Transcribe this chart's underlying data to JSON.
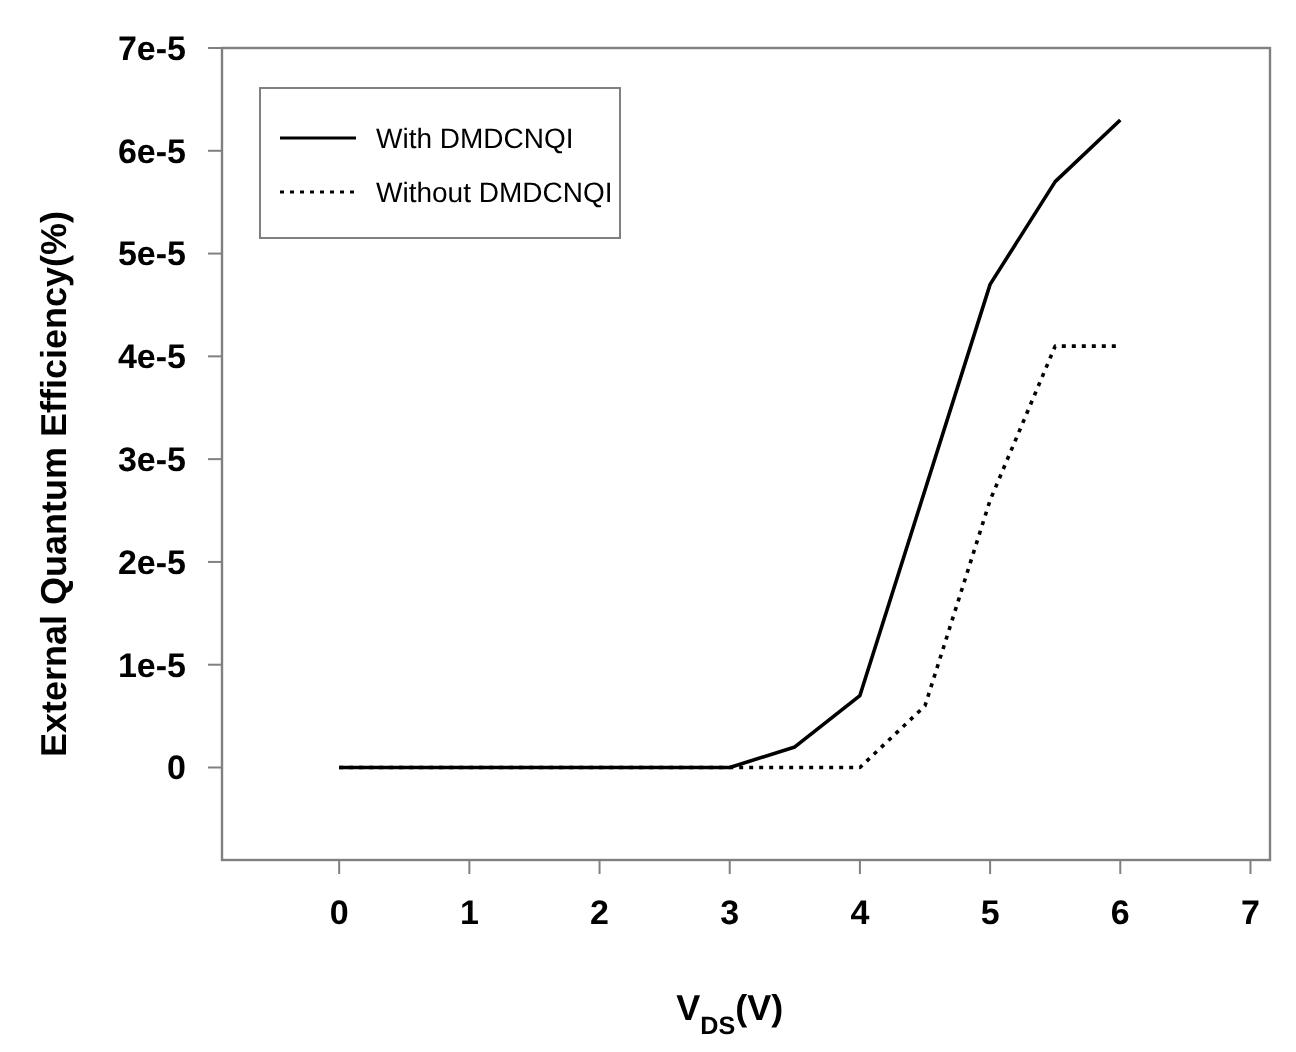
{
  "chart_data": {
    "type": "line",
    "xlabel": "V$_{DS}$(V)",
    "ylabel": "External Quantum Efficiency(%)",
    "xlim": [
      -0.9,
      7.15
    ],
    "ylim": [
      -9e-06,
      7e-05
    ],
    "xticks": [
      0,
      1,
      2,
      3,
      4,
      5,
      6,
      7
    ],
    "yticks": [
      0,
      {
        "value": 1e-05,
        "label": "1e-5"
      },
      {
        "value": 2e-05,
        "label": "2e-5"
      },
      {
        "value": 3e-05,
        "label": "3e-5"
      },
      {
        "value": 4e-05,
        "label": "4e-5"
      },
      {
        "value": 5e-05,
        "label": "5e-5"
      },
      {
        "value": 6e-05,
        "label": "6e-5"
      },
      {
        "value": 7e-05,
        "label": "7e-5"
      }
    ],
    "grid": false,
    "legend": "top left",
    "marker": "none",
    "series": [
      {
        "name": "With DMDCNQI",
        "color": "#000000",
        "line_style": "solid",
        "x": [
          0,
          3,
          3.5,
          4,
          5,
          5.5,
          6
        ],
        "values": [
          0,
          0,
          2e-06,
          7e-06,
          4.7e-05,
          5.7e-05,
          6.3e-05
        ]
      },
      {
        "name": "Without DMDCNQI",
        "color": "#000000",
        "line_style": "dotted",
        "x": [
          0,
          3,
          3.5,
          4,
          4.5,
          5,
          5.5,
          6
        ],
        "values": [
          0,
          0,
          0,
          0,
          6e-06,
          2.6e-05,
          4.1e-05,
          4.1e-05
        ]
      }
    ]
  }
}
